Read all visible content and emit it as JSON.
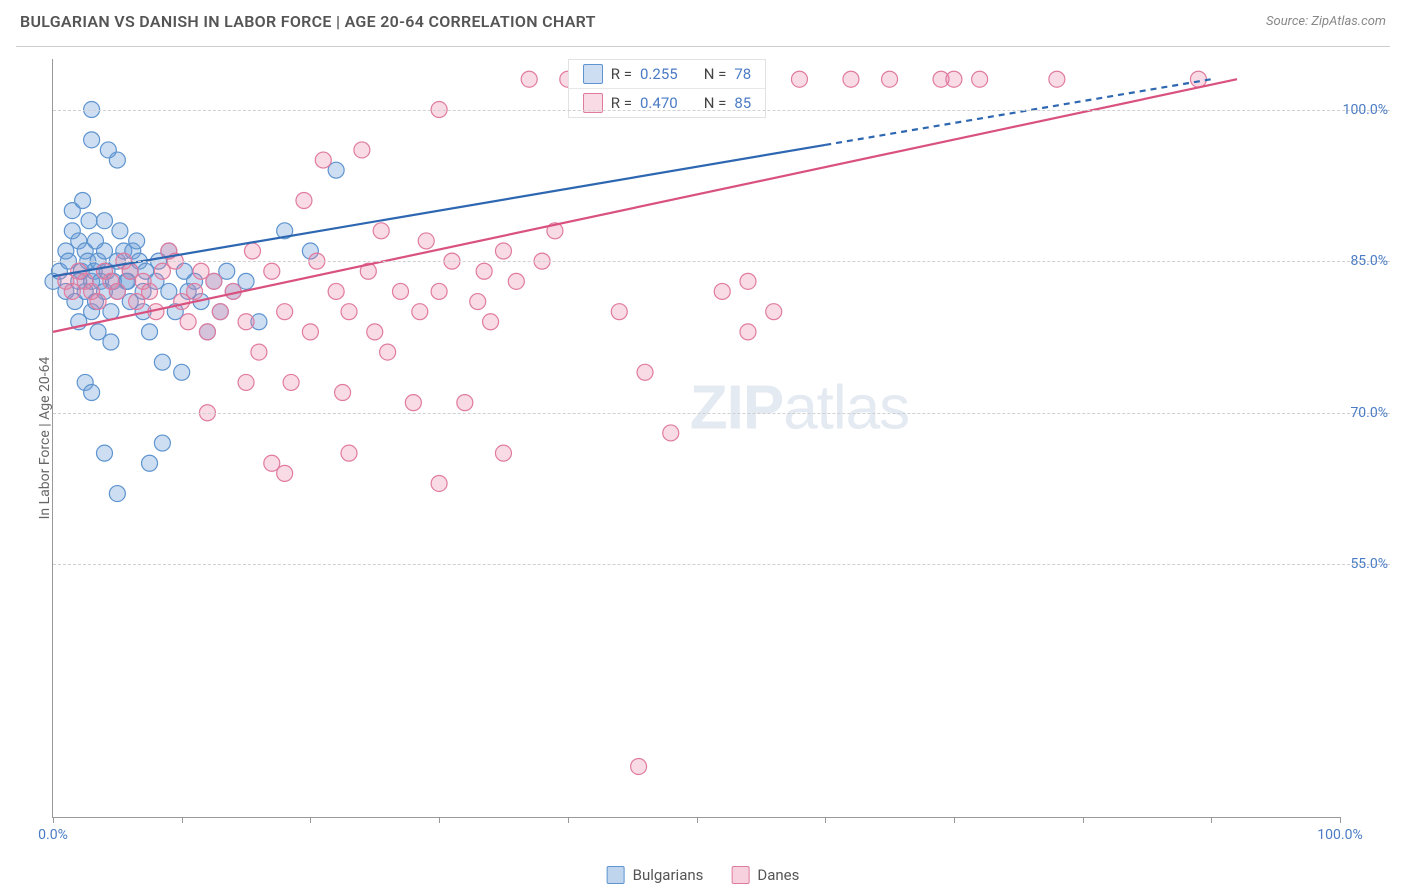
{
  "header": {
    "title": "BULGARIAN VS DANISH IN LABOR FORCE | AGE 20-64 CORRELATION CHART",
    "source_label": "Source: ZipAtlas.com"
  },
  "chart": {
    "type": "scatter",
    "ylabel": "In Labor Force | Age 20-64",
    "xlim": [
      0,
      100
    ],
    "ylim": [
      30,
      105
    ],
    "yticks": [
      {
        "v": 55.0,
        "label": "55.0%"
      },
      {
        "v": 70.0,
        "label": "70.0%"
      },
      {
        "v": 85.0,
        "label": "85.0%"
      },
      {
        "v": 100.0,
        "label": "100.0%"
      }
    ],
    "xticks": [
      0,
      10,
      20,
      30,
      40,
      50,
      60,
      70,
      80,
      90,
      100
    ],
    "xtick_labels": {
      "0": "0.0%",
      "100": "100.0%"
    },
    "background_color": "#ffffff",
    "grid_color": "#d0d0d0",
    "marker_radius": 8,
    "marker_stroke_width": 1.2,
    "trend_line_width": 2.2,
    "series": [
      {
        "name": "Bulgarians",
        "color_fill": "rgba(113,161,218,0.35)",
        "color_stroke": "#5e94cf",
        "line_color": "#2e67b1",
        "line_dash_after_x": 60,
        "R": "0.255",
        "N": "78",
        "trend": {
          "x1": 0,
          "y1": 83.5,
          "x2": 90,
          "y2": 103
        },
        "points": [
          [
            0,
            83
          ],
          [
            0.5,
            84
          ],
          [
            1,
            82
          ],
          [
            1,
            86
          ],
          [
            1.2,
            85
          ],
          [
            1.5,
            88
          ],
          [
            1.5,
            90
          ],
          [
            1.7,
            81
          ],
          [
            2,
            83
          ],
          [
            2,
            87
          ],
          [
            2,
            79
          ],
          [
            2.2,
            84
          ],
          [
            2.5,
            82
          ],
          [
            2.5,
            86
          ],
          [
            2.7,
            85
          ],
          [
            3,
            83
          ],
          [
            3,
            80
          ],
          [
            3,
            97
          ],
          [
            3,
            100
          ],
          [
            3.2,
            84
          ],
          [
            3.3,
            81
          ],
          [
            3.5,
            78
          ],
          [
            3.5,
            85
          ],
          [
            3.7,
            83
          ],
          [
            4,
            82
          ],
          [
            4,
            86
          ],
          [
            4,
            89
          ],
          [
            4.2,
            84
          ],
          [
            4.5,
            80
          ],
          [
            4.5,
            77
          ],
          [
            4.7,
            83
          ],
          [
            5,
            85
          ],
          [
            5,
            82
          ],
          [
            5,
            95
          ],
          [
            5.2,
            88
          ],
          [
            5.5,
            86
          ],
          [
            5.7,
            83
          ],
          [
            6,
            81
          ],
          [
            6,
            84
          ],
          [
            6.2,
            86
          ],
          [
            6.5,
            87
          ],
          [
            6.7,
            85
          ],
          [
            7,
            82
          ],
          [
            7,
            80
          ],
          [
            7.2,
            84
          ],
          [
            7.5,
            78
          ],
          [
            8,
            83
          ],
          [
            8.2,
            85
          ],
          [
            8.5,
            75
          ],
          [
            9,
            82
          ],
          [
            9,
            86
          ],
          [
            9.5,
            80
          ],
          [
            10,
            74
          ],
          [
            10.2,
            84
          ],
          [
            10.5,
            82
          ],
          [
            11,
            83
          ],
          [
            11.5,
            81
          ],
          [
            12,
            78
          ],
          [
            12.5,
            83
          ],
          [
            13,
            80
          ],
          [
            13.5,
            84
          ],
          [
            14,
            82
          ],
          [
            15,
            83
          ],
          [
            16,
            79
          ],
          [
            2.5,
            73
          ],
          [
            3,
            72
          ],
          [
            4,
            66
          ],
          [
            7.5,
            65
          ],
          [
            5,
            62
          ],
          [
            2.3,
            91
          ],
          [
            2.8,
            89
          ],
          [
            3.3,
            87
          ],
          [
            5.8,
            83
          ],
          [
            18,
            88
          ],
          [
            20,
            86
          ],
          [
            22,
            94
          ],
          [
            4.3,
            96
          ],
          [
            8.5,
            67
          ]
        ]
      },
      {
        "name": "Danes",
        "color_fill": "rgba(232,126,160,0.28)",
        "color_stroke": "#e07ba0",
        "line_color": "#d9517f",
        "line_dash_after_x": 100,
        "R": "0.470",
        "N": "85",
        "trend": {
          "x1": 0,
          "y1": 78,
          "x2": 92,
          "y2": 103
        },
        "points": [
          [
            1,
            83
          ],
          [
            1.5,
            82
          ],
          [
            2,
            84
          ],
          [
            2.5,
            83
          ],
          [
            3,
            82
          ],
          [
            3.5,
            81
          ],
          [
            4,
            84
          ],
          [
            4.5,
            83
          ],
          [
            5,
            82
          ],
          [
            5.5,
            85
          ],
          [
            6,
            84
          ],
          [
            6.5,
            81
          ],
          [
            7,
            83
          ],
          [
            7.5,
            82
          ],
          [
            8,
            80
          ],
          [
            8.5,
            84
          ],
          [
            9,
            86
          ],
          [
            9.5,
            85
          ],
          [
            10,
            81
          ],
          [
            10.5,
            79
          ],
          [
            11,
            82
          ],
          [
            11.5,
            84
          ],
          [
            12,
            78
          ],
          [
            12.5,
            83
          ],
          [
            13,
            80
          ],
          [
            14,
            82
          ],
          [
            15,
            79
          ],
          [
            15.5,
            86
          ],
          [
            16,
            76
          ],
          [
            17,
            84
          ],
          [
            18,
            80
          ],
          [
            18.5,
            73
          ],
          [
            19.5,
            91
          ],
          [
            20,
            78
          ],
          [
            20.5,
            85
          ],
          [
            21,
            95
          ],
          [
            22,
            82
          ],
          [
            22.5,
            72
          ],
          [
            23,
            80
          ],
          [
            24,
            96
          ],
          [
            24.5,
            84
          ],
          [
            25,
            78
          ],
          [
            25.5,
            88
          ],
          [
            26,
            76
          ],
          [
            27,
            82
          ],
          [
            28,
            71
          ],
          [
            28.5,
            80
          ],
          [
            29,
            87
          ],
          [
            30,
            82
          ],
          [
            30,
            100
          ],
          [
            31,
            85
          ],
          [
            32,
            71
          ],
          [
            33,
            81
          ],
          [
            33.5,
            84
          ],
          [
            34,
            79
          ],
          [
            35,
            86
          ],
          [
            36,
            83
          ],
          [
            37,
            103
          ],
          [
            38,
            85
          ],
          [
            39,
            88
          ],
          [
            40,
            103
          ],
          [
            42,
            103
          ],
          [
            44,
            80
          ],
          [
            45.5,
            35
          ],
          [
            46,
            74
          ],
          [
            48,
            68
          ],
          [
            52,
            82
          ],
          [
            54,
            78
          ],
          [
            56,
            80
          ],
          [
            58,
            103
          ],
          [
            62,
            103
          ],
          [
            65,
            103
          ],
          [
            69,
            103
          ],
          [
            54,
            83
          ],
          [
            70,
            103
          ],
          [
            72,
            103
          ],
          [
            78,
            103
          ],
          [
            89,
            103
          ],
          [
            18,
            64
          ],
          [
            23,
            66
          ],
          [
            12,
            70
          ],
          [
            15,
            73
          ],
          [
            30,
            63
          ],
          [
            35,
            66
          ],
          [
            17,
            65
          ]
        ]
      }
    ],
    "legend_bottom": [
      {
        "label": "Bulgarians",
        "fill": "rgba(113,161,218,0.45)",
        "stroke": "#5e94cf"
      },
      {
        "label": "Danes",
        "fill": "rgba(232,126,160,0.35)",
        "stroke": "#e07ba0"
      }
    ],
    "watermark": {
      "prefix": "ZIP",
      "suffix": "atlas"
    }
  }
}
